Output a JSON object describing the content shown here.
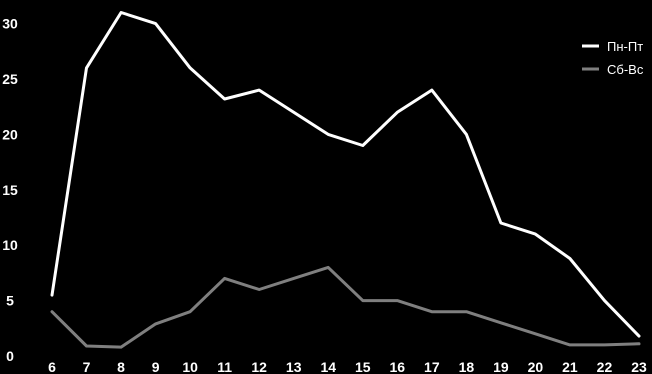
{
  "chart_data": {
    "type": "line",
    "x": [
      6,
      7,
      8,
      9,
      10,
      11,
      12,
      13,
      14,
      15,
      16,
      17,
      18,
      19,
      20,
      21,
      22,
      23
    ],
    "x_tick_labels": [
      "6",
      "7",
      "8",
      "9",
      "10",
      "11",
      "12",
      "13",
      "14",
      "15",
      "16",
      "17",
      "18",
      "19",
      "20",
      "21",
      "22",
      "23"
    ],
    "y_tick_labels": [
      "0",
      "5",
      "10",
      "15",
      "20",
      "25",
      "30"
    ],
    "y_ticks": [
      0,
      5,
      10,
      15,
      20,
      25,
      30
    ],
    "ylim": [
      0,
      31.5
    ],
    "xlim": [
      6,
      23
    ],
    "grid": false,
    "legend_position": "top-right",
    "series": [
      {
        "name": "Пн-Пт",
        "color": "#ffffff",
        "values": [
          5.5,
          26,
          31,
          30,
          26,
          23.2,
          24,
          22,
          20,
          19,
          22,
          24,
          20,
          12,
          11,
          8.8,
          5,
          1.8
        ]
      },
      {
        "name": "Сб-Вс",
        "color": "#7f7f7f",
        "values": [
          4,
          0.9,
          0.8,
          2.9,
          4,
          7,
          6,
          7,
          8,
          5,
          5,
          4,
          4,
          3,
          2,
          1,
          1,
          1.1
        ]
      }
    ]
  }
}
